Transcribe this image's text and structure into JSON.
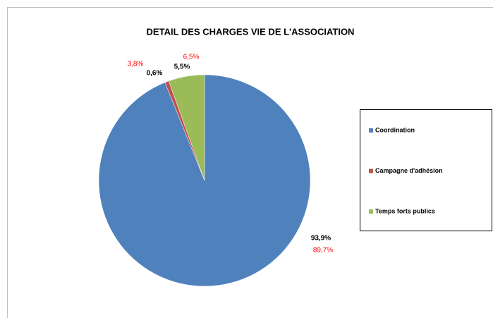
{
  "chart_data": {
    "type": "pie",
    "title": "DETAIL DES CHARGES VIE DE L'ASSOCIATION",
    "categories": [
      "Coordination",
      "Campagne d'adhésion",
      "Temps forts publics"
    ],
    "colors": [
      "#4f81bd",
      "#c0504d",
      "#9bbb59"
    ],
    "values": [
      93.9,
      0.6,
      5.5
    ],
    "value_labels": [
      "93,9%",
      "0,6%",
      "5,5%"
    ],
    "comparison_values": [
      89.7,
      3.8,
      6.5
    ],
    "comparison_labels": [
      "89,7%",
      "3,8%",
      "6,5%"
    ],
    "comparison_color": "#ff0000",
    "legend": "right"
  }
}
